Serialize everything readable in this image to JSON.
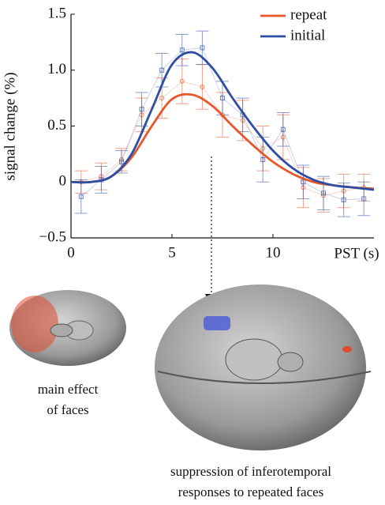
{
  "chart_data": {
    "type": "line",
    "y_label": "signal change (%)",
    "x_label": "PST (s)",
    "x": [
      0,
      1,
      2,
      3,
      4,
      5,
      6,
      7,
      8,
      9,
      10,
      11,
      12,
      13,
      14,
      15
    ],
    "point_x": [
      0.5,
      1.5,
      2.5,
      3.5,
      4.5,
      5.5,
      6.5,
      7.5,
      8.5,
      9.5,
      10.5,
      11.5,
      12.5,
      13.5,
      14.5
    ],
    "xlim": [
      0,
      15
    ],
    "xticks": [
      0,
      5,
      10
    ],
    "ylim": [
      -0.5,
      1.5
    ],
    "yticks": [
      {
        "value": -0.5,
        "label": "−0.5"
      },
      0,
      0.5,
      {
        "value": 1,
        "label": "1.0"
      },
      1.5
    ],
    "series": [
      {
        "name": "repeat",
        "color": "#e8562a",
        "values": [
          0,
          0,
          0.05,
          0.22,
          0.5,
          0.74,
          0.78,
          0.68,
          0.5,
          0.33,
          0.18,
          0.07,
          0,
          -0.03,
          -0.05,
          -0.06
        ],
        "points": [
          0,
          0.05,
          0.2,
          0.6,
          0.75,
          0.9,
          0.85,
          0.6,
          0.55,
          0.3,
          0.4,
          -0.05,
          -0.12,
          -0.08,
          -0.05
        ],
        "errors": [
          0.1,
          0.12,
          0.1,
          0.15,
          0.18,
          0.2,
          0.2,
          0.2,
          0.18,
          0.2,
          0.2,
          0.18,
          0.15,
          0.15,
          0.12
        ]
      },
      {
        "name": "initial",
        "color": "#2d4ea3",
        "values": [
          0,
          0,
          0.05,
          0.25,
          0.65,
          1.05,
          1.16,
          1.02,
          0.75,
          0.5,
          0.28,
          0.12,
          0.02,
          -0.03,
          -0.05,
          -0.07
        ],
        "points": [
          -0.13,
          0.02,
          0.18,
          0.65,
          1,
          1.18,
          1.2,
          0.75,
          0.6,
          0.2,
          0.47,
          0,
          -0.1,
          -0.16,
          -0.15
        ],
        "errors": [
          0.15,
          0.12,
          0.1,
          0.15,
          0.15,
          0.14,
          0.15,
          0.15,
          0.15,
          0.2,
          0.15,
          0.15,
          0.15,
          0.15,
          0.15
        ]
      }
    ]
  },
  "captions": {
    "left": [
      "main effect",
      "of faces"
    ],
    "bottom": [
      "suppression of inferotemporal",
      "responses to repeated faces"
    ]
  }
}
